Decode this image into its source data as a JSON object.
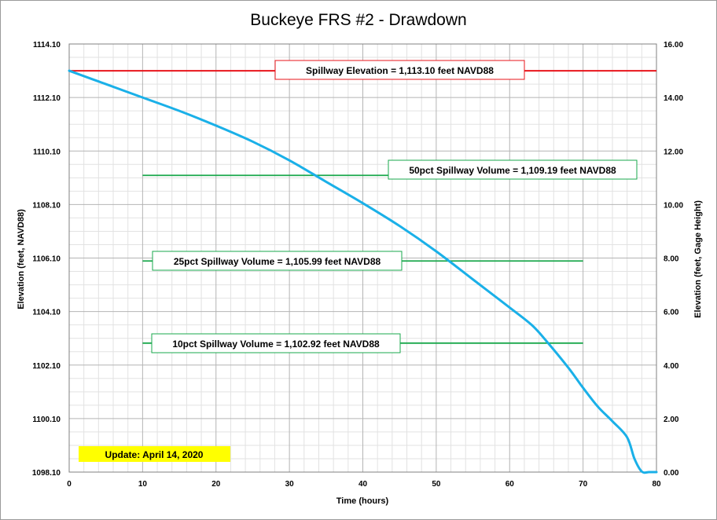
{
  "chart_data": {
    "type": "line",
    "title": "Buckeye FRS #2 - Drawdown",
    "xlabel": "Time (hours)",
    "ylabel": "Elevation (feet, NAVD88)",
    "y2label": "Elevation (feet, Gage Height)",
    "xlim": [
      0,
      80
    ],
    "ylim": [
      1098.1,
      1114.1
    ],
    "y2lim": [
      0,
      16
    ],
    "x_ticks": [
      0,
      10,
      20,
      30,
      40,
      50,
      60,
      70,
      80
    ],
    "y_ticks": [
      "1098.10",
      "1100.10",
      "1102.10",
      "1104.10",
      "1106.10",
      "1108.10",
      "1110.10",
      "1112.10",
      "1114.10"
    ],
    "y2_ticks": [
      "0.00",
      "2.00",
      "4.00",
      "6.00",
      "8.00",
      "10.00",
      "12.00",
      "14.00",
      "16.00"
    ],
    "grid": true,
    "series": [
      {
        "color": "#1ab0e8",
        "x": [
          0,
          5,
          10,
          15,
          20,
          25,
          30,
          35,
          40,
          45,
          50,
          55,
          60,
          63,
          65,
          68,
          70,
          72,
          74,
          76,
          77,
          78,
          79,
          80
        ],
        "y": [
          1113.1,
          1112.6,
          1112.1,
          1111.6,
          1111.05,
          1110.45,
          1109.75,
          1108.95,
          1108.15,
          1107.3,
          1106.35,
          1105.3,
          1104.25,
          1103.6,
          1103.0,
          1102.0,
          1101.25,
          1100.55,
          1100.0,
          1099.4,
          1098.6,
          1098.12,
          1098.1,
          1098.1
        ]
      }
    ],
    "reference_lines": [
      {
        "label": "Spillway Elevation = 1,113.10  feet NAVD88",
        "y": 1113.1,
        "x_range": [
          0,
          80
        ],
        "color": "#e8141b"
      },
      {
        "label": "50pct Spillway Volume = 1,109.19  feet NAVD88",
        "y": 1109.19,
        "x_range": [
          10,
          70
        ],
        "color": "#1aa84c"
      },
      {
        "label": "25pct Spillway Volume = 1,105.99  feet NAVD88",
        "y": 1105.99,
        "x_range": [
          10,
          70
        ],
        "color": "#1aa84c"
      },
      {
        "label": "10pct Spillway Volume = 1,102.92  feet NAVD88",
        "y": 1102.92,
        "x_range": [
          10,
          70
        ],
        "color": "#1aa84c"
      }
    ],
    "annotation": {
      "text": "Update: April 14, 2020",
      "background": "#ffff00"
    }
  }
}
